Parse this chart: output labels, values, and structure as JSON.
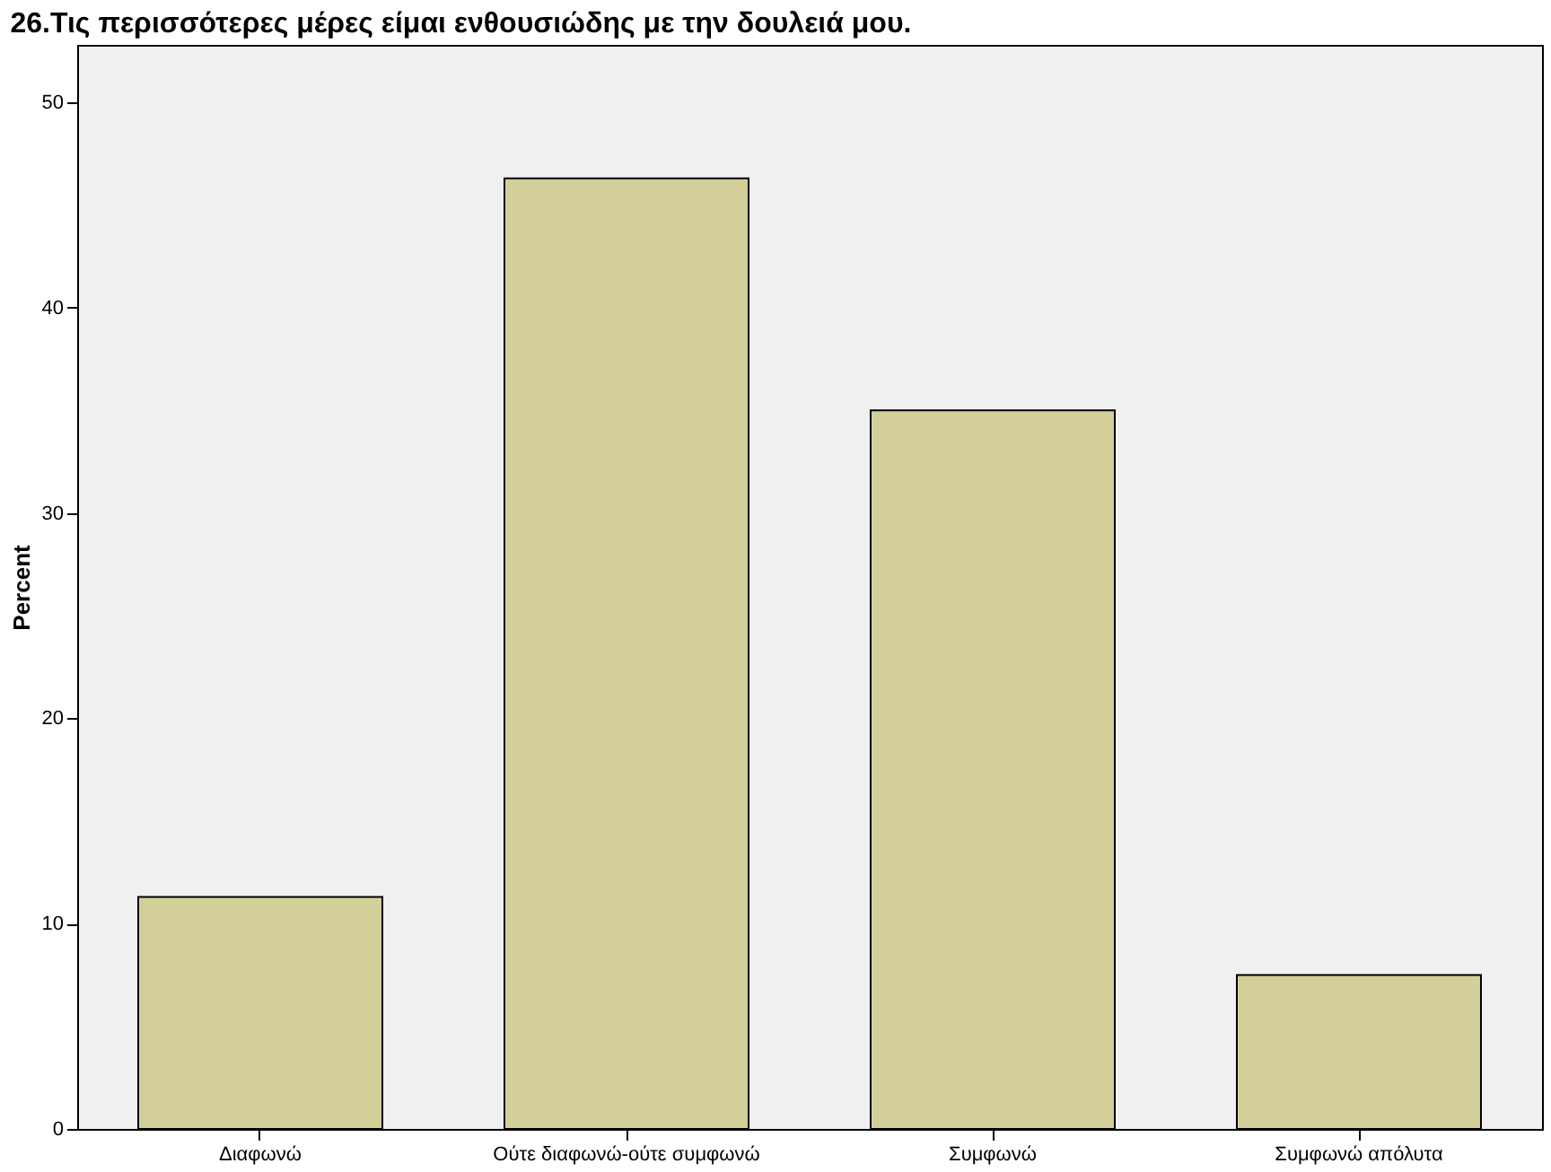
{
  "chart_data": {
    "type": "bar",
    "title": "26.Τις περισσότερες μέρες είμαι ενθουσιώδης με την δουλειά μου.",
    "ylabel": "Percent",
    "categories": [
      "Διαφωνώ",
      "Ούτε διαφωνώ-ούτε συμφωνώ",
      "Συμφωνώ",
      "Συμφωνώ απόλυτα"
    ],
    "values": [
      11.3,
      46.3,
      35.0,
      7.5
    ],
    "color": "#d3cf98",
    "ylim": [
      0,
      52.8
    ],
    "yticks": [
      0,
      10,
      20,
      30,
      40,
      50
    ],
    "grid": false
  }
}
